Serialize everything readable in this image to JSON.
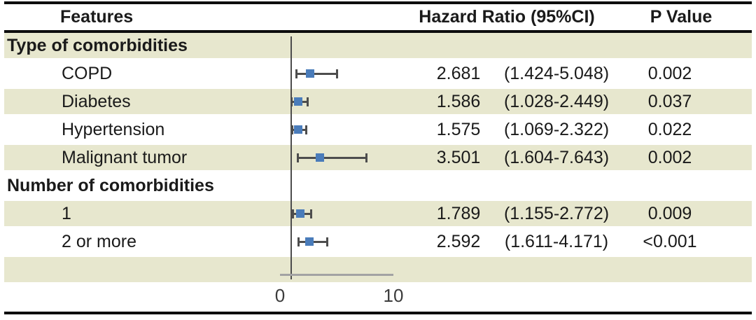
{
  "table": {
    "headers": {
      "features": "Features",
      "hazard_ratio": "Hazard Ratio (95%CI)",
      "p_value": "P Value"
    },
    "rows": [
      {
        "kind": "group",
        "label": "Type of comorbidities",
        "shaded": true
      },
      {
        "kind": "item",
        "label": "COPD",
        "hr": 2.681,
        "ci_low": 1.424,
        "ci_high": 5.048,
        "hr_text": "2.681",
        "ci_text": "(1.424-5.048)",
        "p_text": "0.002",
        "shaded": false
      },
      {
        "kind": "item",
        "label": "Diabetes",
        "hr": 1.586,
        "ci_low": 1.028,
        "ci_high": 2.449,
        "hr_text": "1.586",
        "ci_text": "(1.028-2.449)",
        "p_text": "0.037",
        "shaded": true
      },
      {
        "kind": "item",
        "label": "Hypertension",
        "hr": 1.575,
        "ci_low": 1.069,
        "ci_high": 2.322,
        "hr_text": "1.575",
        "ci_text": "(1.069-2.322)",
        "p_text": "0.022",
        "shaded": false
      },
      {
        "kind": "item",
        "label": "Malignant tumor",
        "hr": 3.501,
        "ci_low": 1.604,
        "ci_high": 7.643,
        "hr_text": "3.501",
        "ci_text": "(1.604-7.643)",
        "p_text": "0.002",
        "shaded": true
      },
      {
        "kind": "group",
        "label": "Number of comorbidities",
        "shaded": false
      },
      {
        "kind": "item",
        "label": "1",
        "hr": 1.789,
        "ci_low": 1.155,
        "ci_high": 2.772,
        "hr_text": "1.789",
        "ci_text": "(1.155-2.772)",
        "p_text": "0.009",
        "shaded": true
      },
      {
        "kind": "item",
        "label": "2 or more",
        "hr": 2.592,
        "ci_low": 1.611,
        "ci_high": 4.171,
        "hr_text": "2.592",
        "ci_text": "(1.611-4.171)",
        "p_text": "<0.001",
        "shaded": false
      },
      {
        "kind": "empty",
        "shaded": true
      }
    ]
  },
  "axis": {
    "ticks": [
      {
        "value": 0,
        "label": "0"
      },
      {
        "value": 10,
        "label": "10"
      }
    ],
    "reference_value": 1
  },
  "colors": {
    "band": "#e7e7ce",
    "marker": "#4a7cba",
    "errorbar": "#4d4d4d",
    "refline": "#4d4d4d",
    "axisline": "#a3a3a3",
    "rule": "#0d0d0d"
  },
  "chart_data": {
    "type": "scatter",
    "subtype": "forest-plot",
    "title": "",
    "xlabel": "",
    "columns": [
      "Features",
      "Hazard Ratio (95%CI)",
      "P Value"
    ],
    "x_axis": {
      "tick_values": [
        0,
        10
      ],
      "tick_labels": [
        "0",
        "10"
      ],
      "reference_line": 1
    },
    "groups": [
      {
        "label": "Type of comorbidities",
        "items": [
          {
            "feature": "COPD",
            "hazard_ratio": 2.681,
            "ci95": [
              1.424,
              5.048
            ],
            "p_value": "0.002"
          },
          {
            "feature": "Diabetes",
            "hazard_ratio": 1.586,
            "ci95": [
              1.028,
              2.449
            ],
            "p_value": "0.037"
          },
          {
            "feature": "Hypertension",
            "hazard_ratio": 1.575,
            "ci95": [
              1.069,
              2.322
            ],
            "p_value": "0.022"
          },
          {
            "feature": "Malignant tumor",
            "hazard_ratio": 3.501,
            "ci95": [
              1.604,
              7.643
            ],
            "p_value": "0.002"
          }
        ]
      },
      {
        "label": "Number of comorbidities",
        "items": [
          {
            "feature": "1",
            "hazard_ratio": 1.789,
            "ci95": [
              1.155,
              2.772
            ],
            "p_value": "0.009"
          },
          {
            "feature": "2 or more",
            "hazard_ratio": 2.592,
            "ci95": [
              1.611,
              4.171
            ],
            "p_value": "<0.001"
          }
        ]
      }
    ]
  }
}
